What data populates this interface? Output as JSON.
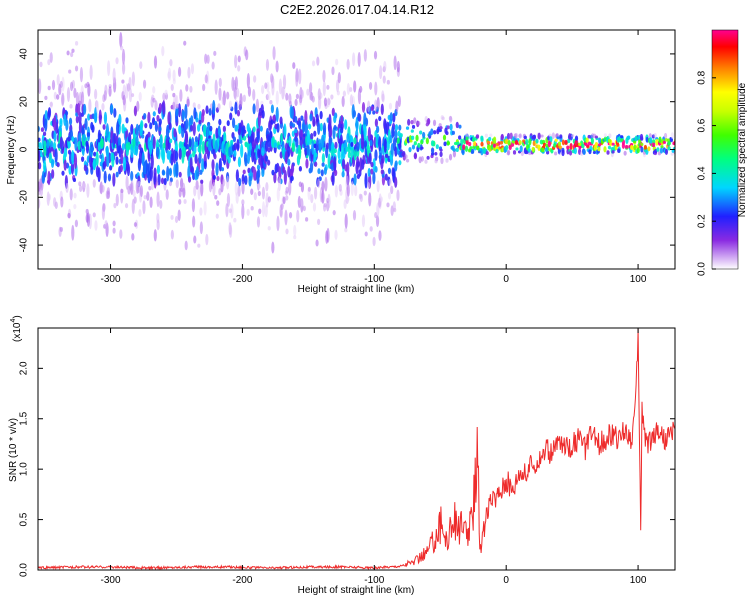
{
  "title": "C2E2.2026.017.04.14.R12",
  "colors": {
    "snr_line": "#ee2b2b",
    "axis": "#000000",
    "background": "#ffffff"
  },
  "chart_data": [
    {
      "type": "heatmap",
      "xlabel": "Height of straight line (km)",
      "ylabel": "Frequency (Hz)",
      "xlim": [
        -355,
        128
      ],
      "ylim": [
        -50,
        50
      ],
      "xticks": [
        -300,
        -200,
        -100,
        0,
        100
      ],
      "yticks": [
        -40,
        -20,
        0,
        20,
        40
      ],
      "colorbar": {
        "label": "Normalized spectral amplitude",
        "range": [
          0.0,
          1.0
        ],
        "ticks": [
          0.0,
          0.2,
          0.4,
          0.6,
          0.8
        ],
        "placement": "right"
      },
      "description_bands": [
        {
          "x_from": -355,
          "x_to": -82,
          "center_hz": 2,
          "spread_hz": 45,
          "amplitude": 0.3
        },
        {
          "x_from": -82,
          "x_to": -35,
          "center_hz": 4,
          "spread_hz": 10,
          "amplitude": 0.45
        },
        {
          "x_from": -35,
          "x_to": 128,
          "center_hz": 2,
          "spread_hz": 4,
          "amplitude": 0.95
        }
      ]
    },
    {
      "type": "line",
      "xlabel": "Height of straight line (km)",
      "ylabel": "SNR (10 * v/v)",
      "y_multiplier": "(x10^4)",
      "y_multiplier_base": "(x10",
      "y_multiplier_exp": "4",
      "y_multiplier_close": ")",
      "xlim": [
        -355,
        128
      ],
      "ylim": [
        0.0,
        2.4
      ],
      "xticks": [
        -300,
        -200,
        -100,
        0,
        100
      ],
      "yticks": [
        0.0,
        0.5,
        1.0,
        1.5,
        2.0
      ],
      "ytick_labels": [
        "0.0",
        "0.5",
        "1.0",
        "1.5",
        "2.0"
      ],
      "series": [
        {
          "x": [
            -355,
            -330,
            -300,
            -270,
            -240,
            -210,
            -180,
            -150,
            -120,
            -100,
            -90,
            -80,
            -70,
            -60,
            -55,
            -50,
            -45,
            -40,
            -35,
            -30,
            -25,
            -22,
            -20,
            -18,
            -15,
            -10,
            -5,
            0,
            5,
            10,
            15,
            20,
            25,
            30,
            35,
            40,
            45,
            50,
            55,
            60,
            65,
            70,
            75,
            80,
            85,
            90,
            95,
            98,
            100,
            102,
            103,
            105,
            108,
            110,
            115,
            120,
            125,
            128
          ],
          "values": [
            0.02,
            0.03,
            0.03,
            0.02,
            0.03,
            0.03,
            0.02,
            0.03,
            0.03,
            0.02,
            0.03,
            0.04,
            0.08,
            0.18,
            0.3,
            0.45,
            0.3,
            0.5,
            0.42,
            0.35,
            0.5,
            1.5,
            0.25,
            0.3,
            0.55,
            0.7,
            0.78,
            0.9,
            0.8,
            1.0,
            0.95,
            1.05,
            1.1,
            1.2,
            1.15,
            1.3,
            1.2,
            1.25,
            1.3,
            1.2,
            1.35,
            1.25,
            1.3,
            1.35,
            1.28,
            1.4,
            1.3,
            1.6,
            2.3,
            0.45,
            1.6,
            1.35,
            1.25,
            1.3,
            1.4,
            1.3,
            1.35,
            1.4
          ]
        }
      ]
    }
  ]
}
